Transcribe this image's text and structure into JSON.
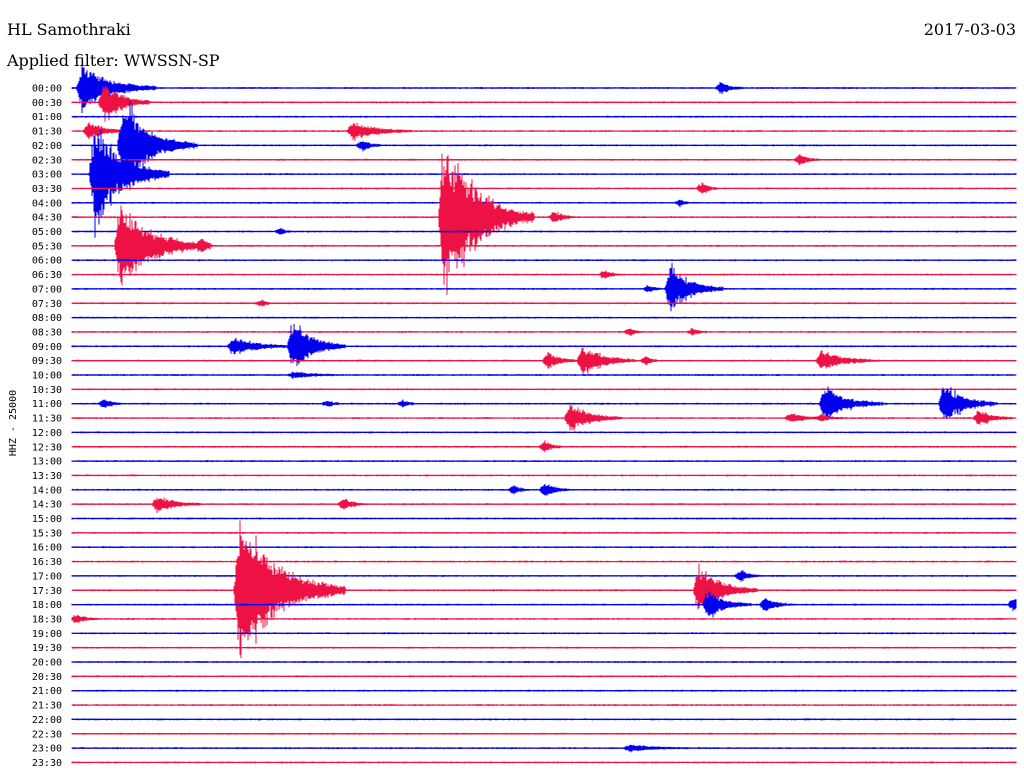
{
  "header": {
    "station": "HL Samothraki",
    "date": "2017-03-03",
    "filter": "Applied filter: WWSSN-SP"
  },
  "colors": {
    "even": "#0000ee",
    "odd": "#ee1144"
  },
  "chart_data": {
    "type": "line",
    "title": "",
    "ylabel": "HHZ - 25000",
    "row_labels": [
      "00:00",
      "00:30",
      "01:00",
      "01:30",
      "02:00",
      "02:30",
      "03:00",
      "03:30",
      "04:00",
      "04:30",
      "05:00",
      "05:30",
      "06:00",
      "06:30",
      "07:00",
      "07:30",
      "08:00",
      "08:30",
      "09:00",
      "09:30",
      "10:00",
      "10:30",
      "11:00",
      "11:30",
      "12:00",
      "12:30",
      "13:00",
      "13:30",
      "14:00",
      "14:30",
      "15:00",
      "15:30",
      "16:00",
      "16:30",
      "17:00",
      "17:30",
      "18:00",
      "18:30",
      "19:00",
      "19:30",
      "20:00",
      "20:30",
      "21:00",
      "21:30",
      "22:00",
      "22:30",
      "23:00",
      "23:30"
    ],
    "row_minutes": 30,
    "events": [
      {
        "row": 0,
        "minute": 0.2,
        "amp": 2.0,
        "dur": 2.5
      },
      {
        "row": 0,
        "minute": 20.5,
        "amp": 0.5,
        "dur": 0.8
      },
      {
        "row": 1,
        "minute": 0.9,
        "amp": 1.8,
        "dur": 1.6
      },
      {
        "row": 3,
        "minute": 0.4,
        "amp": 0.7,
        "dur": 1.5
      },
      {
        "row": 3,
        "minute": 8.8,
        "amp": 0.8,
        "dur": 2.0
      },
      {
        "row": 4,
        "minute": 1.5,
        "amp": 3.2,
        "dur": 2.5
      },
      {
        "row": 4,
        "minute": 1.7,
        "amp": 1.2,
        "dur": 1.0
      },
      {
        "row": 4,
        "minute": 9.1,
        "amp": 0.5,
        "dur": 0.7
      },
      {
        "row": 5,
        "minute": 23.0,
        "amp": 0.5,
        "dur": 0.7
      },
      {
        "row": 6,
        "minute": 0.6,
        "amp": 4.5,
        "dur": 2.5
      },
      {
        "row": 7,
        "minute": 19.9,
        "amp": 0.5,
        "dur": 0.6
      },
      {
        "row": 8,
        "minute": 19.2,
        "amp": 0.3,
        "dur": 0.4
      },
      {
        "row": 9,
        "minute": 11.7,
        "amp": 7.0,
        "dur": 3.0
      },
      {
        "row": 9,
        "minute": 15.2,
        "amp": 0.5,
        "dur": 0.8
      },
      {
        "row": 10,
        "minute": 6.5,
        "amp": 0.3,
        "dur": 0.4
      },
      {
        "row": 11,
        "minute": 1.4,
        "amp": 3.5,
        "dur": 3.0
      },
      {
        "row": 11,
        "minute": 4.0,
        "amp": 0.4,
        "dur": 0.5
      },
      {
        "row": 13,
        "minute": 16.8,
        "amp": 0.4,
        "dur": 0.6
      },
      {
        "row": 14,
        "minute": 18.9,
        "amp": 2.0,
        "dur": 1.8
      },
      {
        "row": 14,
        "minute": 18.2,
        "amp": 0.3,
        "dur": 0.5
      },
      {
        "row": 15,
        "minute": 5.9,
        "amp": 0.3,
        "dur": 0.4
      },
      {
        "row": 17,
        "minute": 19.6,
        "amp": 0.3,
        "dur": 0.6
      },
      {
        "row": 17,
        "minute": 17.6,
        "amp": 0.3,
        "dur": 0.5
      },
      {
        "row": 18,
        "minute": 5.0,
        "amp": 0.8,
        "dur": 2.0
      },
      {
        "row": 18,
        "minute": 6.9,
        "amp": 2.2,
        "dur": 1.8
      },
      {
        "row": 19,
        "minute": 15.0,
        "amp": 0.8,
        "dur": 1.0
      },
      {
        "row": 19,
        "minute": 16.1,
        "amp": 1.3,
        "dur": 1.8
      },
      {
        "row": 19,
        "minute": 18.1,
        "amp": 0.4,
        "dur": 0.5
      },
      {
        "row": 19,
        "minute": 23.7,
        "amp": 0.8,
        "dur": 2.0
      },
      {
        "row": 20,
        "minute": 6.9,
        "amp": 0.3,
        "dur": 1.5
      },
      {
        "row": 22,
        "minute": 0.9,
        "amp": 0.4,
        "dur": 0.7
      },
      {
        "row": 22,
        "minute": 8.0,
        "amp": 0.3,
        "dur": 0.5
      },
      {
        "row": 22,
        "minute": 10.4,
        "amp": 0.3,
        "dur": 0.5
      },
      {
        "row": 22,
        "minute": 23.8,
        "amp": 1.5,
        "dur": 2.0
      },
      {
        "row": 22,
        "minute": 27.6,
        "amp": 1.8,
        "dur": 1.8
      },
      {
        "row": 23,
        "minute": 15.7,
        "amp": 1.2,
        "dur": 1.8
      },
      {
        "row": 23,
        "minute": 22.7,
        "amp": 0.4,
        "dur": 1.2
      },
      {
        "row": 23,
        "minute": 23.7,
        "amp": 0.3,
        "dur": 0.8
      },
      {
        "row": 23,
        "minute": 28.7,
        "amp": 0.7,
        "dur": 1.2
      },
      {
        "row": 25,
        "minute": 14.9,
        "amp": 0.5,
        "dur": 0.7
      },
      {
        "row": 28,
        "minute": 13.9,
        "amp": 0.4,
        "dur": 0.6
      },
      {
        "row": 28,
        "minute": 14.9,
        "amp": 0.6,
        "dur": 0.9
      },
      {
        "row": 29,
        "minute": 2.6,
        "amp": 0.7,
        "dur": 1.5
      },
      {
        "row": 29,
        "minute": 8.5,
        "amp": 0.5,
        "dur": 0.8
      },
      {
        "row": 35,
        "minute": 5.2,
        "amp": 6.0,
        "dur": 3.5
      },
      {
        "row": 35,
        "minute": 19.8,
        "amp": 2.0,
        "dur": 2.0
      },
      {
        "row": 34,
        "minute": 21.1,
        "amp": 0.5,
        "dur": 0.8
      },
      {
        "row": 36,
        "minute": 20.1,
        "amp": 1.2,
        "dur": 1.5
      },
      {
        "row": 36,
        "minute": 21.9,
        "amp": 0.6,
        "dur": 1.0
      },
      {
        "row": 36,
        "minute": 29.8,
        "amp": 0.6,
        "dur": 0.5
      },
      {
        "row": 37,
        "minute": 0.0,
        "amp": 0.4,
        "dur": 0.8
      },
      {
        "row": 46,
        "minute": 17.6,
        "amp": 0.3,
        "dur": 2.0
      }
    ]
  }
}
